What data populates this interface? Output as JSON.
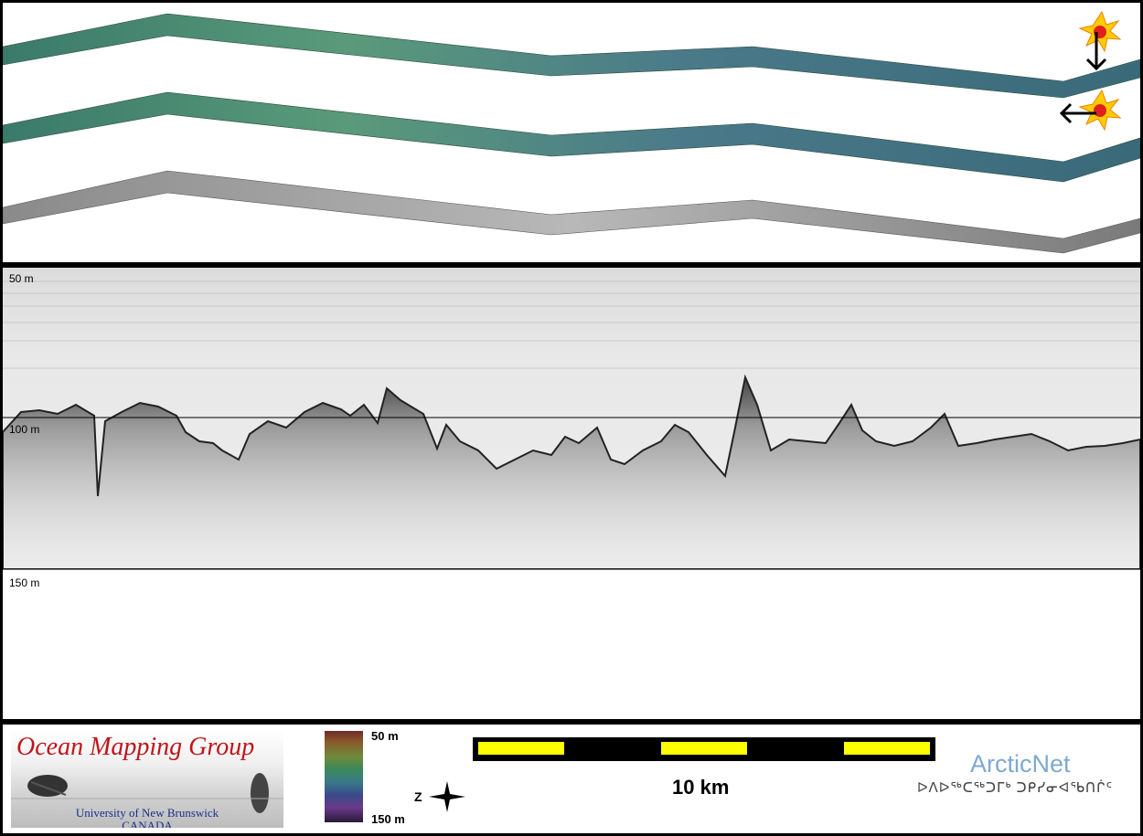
{
  "depth_labels": {
    "top": "50 m",
    "mid": "100 m",
    "bottom": "150 m"
  },
  "logo": {
    "title": "Ocean Mapping Group",
    "subtitle_line1": "University of New Brunswick",
    "subtitle_line2": "CANADA"
  },
  "colorbar": {
    "top_label": "50 m",
    "bottom_label": "150 m"
  },
  "scale": {
    "label": "10 km",
    "segment_color": "#ffff00"
  },
  "compass": {
    "label": "Z"
  },
  "arcticnet": {
    "title": "ArcticNet",
    "syllabics": "ᐅᐱᐅᖅᑕᖅᑐᒥᒃ ᑐᑭᓯᓂᐊᖃᑎᒌᑦ"
  },
  "markers": {
    "sun_fill": "#ffcc00",
    "sun_core": "#e02020"
  },
  "colors": {
    "logo_red": "#c0151a",
    "logo_blue": "#1a2f8a",
    "arcticnet_blue": "#7fa9cf"
  }
}
